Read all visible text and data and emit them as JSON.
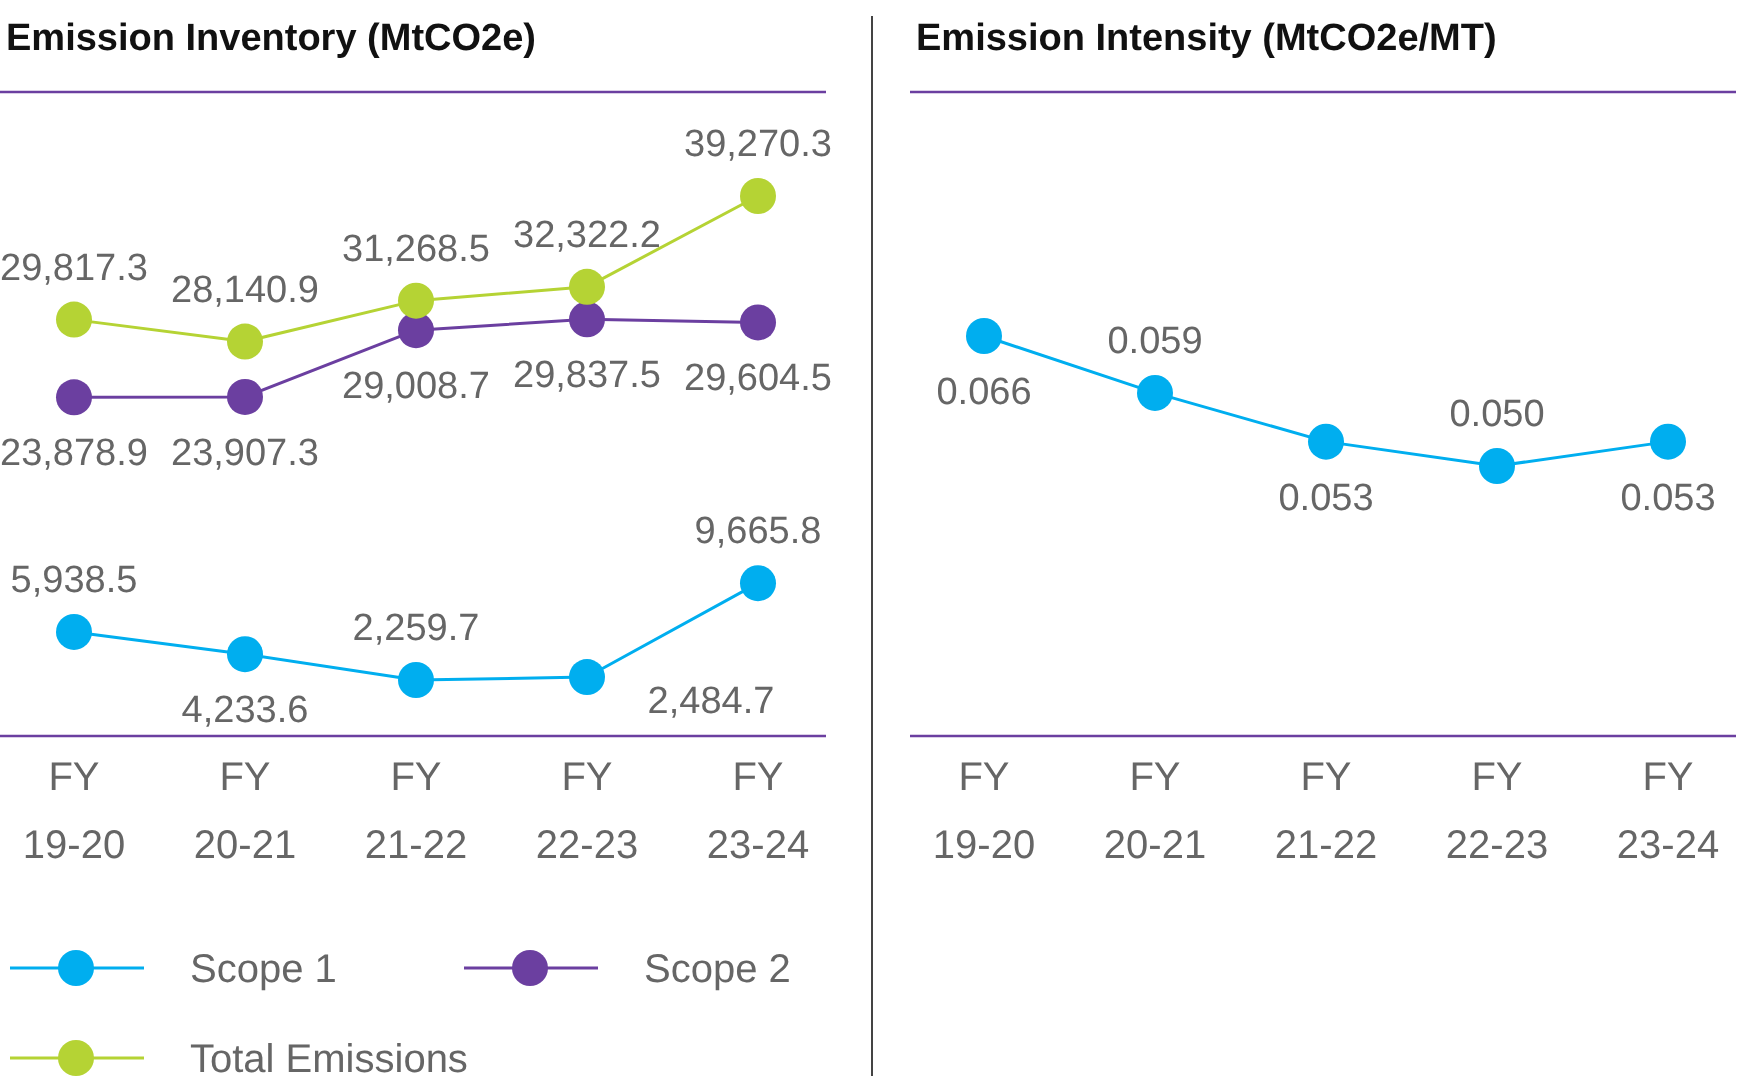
{
  "chart_data": [
    {
      "type": "line",
      "title": "Emission Inventory (MtCO2e)",
      "categories": [
        "FY 19-20",
        "FY 20-21",
        "FY 21-22",
        "FY 22-23",
        "FY 23-24"
      ],
      "series": [
        {
          "name": "Scope 1",
          "color": "#00aeef",
          "values": [
            5938.5,
            4233.6,
            2259.7,
            2484.7,
            9665.8
          ],
          "value_labels": [
            "5,938.5",
            "4,233.6",
            "2,259.7",
            "2,484.7",
            "9,665.8"
          ]
        },
        {
          "name": "Scope 2",
          "color": "#6b3fa0",
          "values": [
            23878.9,
            23907.3,
            29008.7,
            29837.5,
            29604.5
          ],
          "value_labels": [
            "23,878.9",
            "23,907.3",
            "29,008.7",
            "29,837.5",
            "29,604.5"
          ]
        },
        {
          "name": "Total Emissions",
          "color": "#b5d334",
          "values": [
            29817.3,
            28140.9,
            31268.5,
            32322.2,
            39270.3
          ],
          "value_labels": [
            "29,817.3",
            "28,140.9",
            "31,268.5",
            "32,322.2",
            "39,270.3"
          ]
        }
      ],
      "marker": "circle",
      "legend": "bottom",
      "grid": false
    },
    {
      "type": "line",
      "title": "Emission Intensity (MtCO2e/MT)",
      "categories": [
        "FY 19-20",
        "FY 20-21",
        "FY 21-22",
        "FY 22-23",
        "FY 23-24"
      ],
      "series": [
        {
          "color": "#00aeef",
          "values": [
            0.066,
            0.059,
            0.053,
            0.05,
            0.053
          ],
          "value_labels": [
            "0.066",
            "0.059",
            "0.053",
            "0.050",
            "0.053"
          ]
        }
      ],
      "marker": "circle",
      "legend": false,
      "grid": false
    }
  ]
}
